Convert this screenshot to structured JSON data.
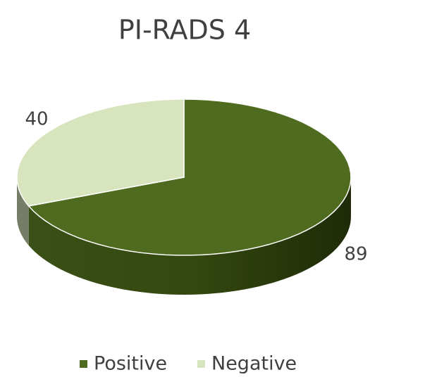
{
  "chart_data": {
    "type": "pie",
    "title": "PI-RADS 4",
    "categories": [
      "Positive",
      "Negative"
    ],
    "values": [
      89,
      40
    ],
    "colors": [
      "#4f6b1f",
      "#d7e4bd"
    ],
    "legend": "bottom"
  }
}
